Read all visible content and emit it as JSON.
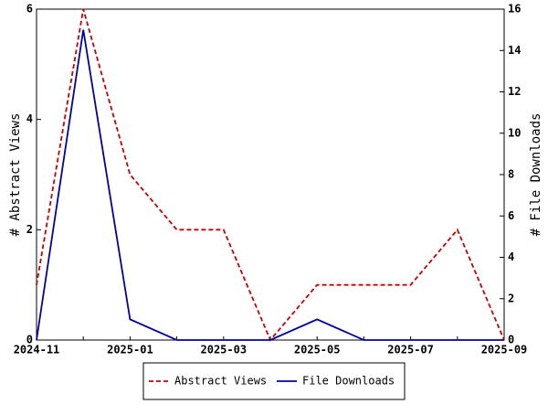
{
  "chart_data": {
    "type": "line",
    "categories": [
      "2024-11",
      null,
      "2025-01",
      null,
      "2025-03",
      null,
      "2025-05",
      null,
      "2025-07",
      null,
      "2025-09"
    ],
    "ylabel": "# Abstract Views",
    "y2label": "# File Downloads",
    "ylim": [
      0,
      6
    ],
    "yticks": [
      0,
      2,
      4,
      6
    ],
    "y2lim": [
      0,
      16
    ],
    "y2ticks": [
      0,
      2,
      4,
      6,
      8,
      10,
      12,
      14,
      16
    ],
    "series": [
      {
        "name": "Abstract Views",
        "color": "#cc0000",
        "dash": true,
        "values": [
          1,
          6,
          3,
          2,
          2,
          0,
          1,
          1,
          1,
          2,
          0
        ]
      },
      {
        "name": "File Downloads",
        "color": "#0000aa",
        "dash": false,
        "axis": "y2",
        "values": [
          0,
          15,
          1,
          0,
          0,
          0,
          1,
          0,
          0,
          0,
          0
        ]
      }
    ],
    "legend": "bottom"
  }
}
